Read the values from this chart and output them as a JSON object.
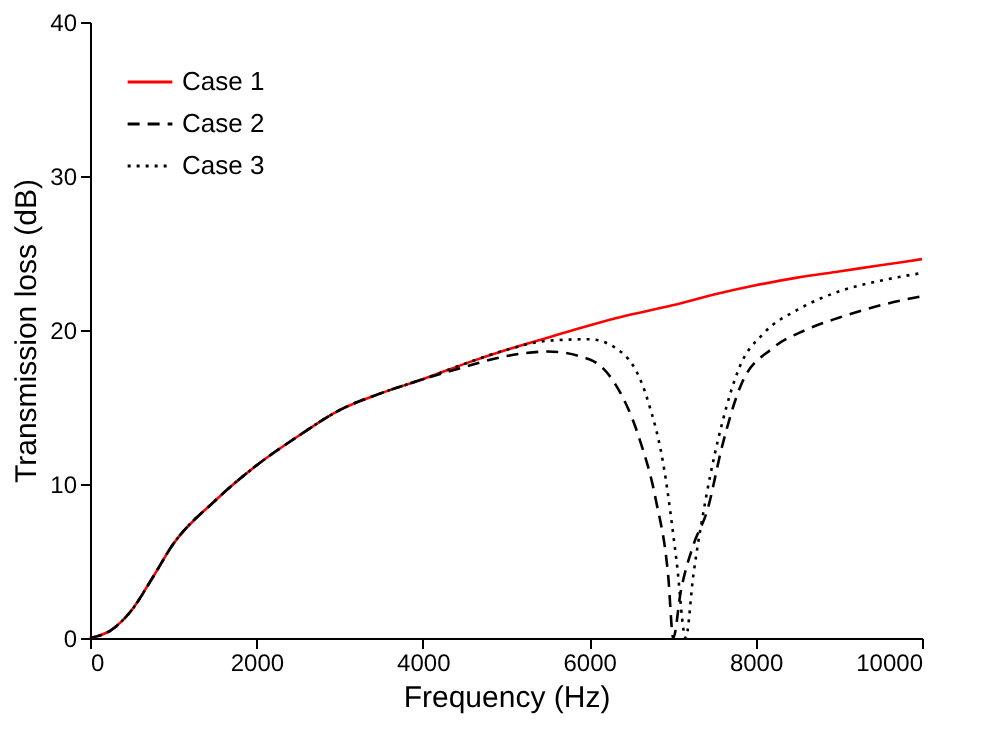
{
  "chart_data": {
    "type": "line",
    "xlabel": "Frequency (Hz)",
    "ylabel": "Transmission loss (dB)",
    "xlim": [
      0,
      10000
    ],
    "ylim": [
      0,
      40
    ],
    "xticks": [
      0,
      2000,
      4000,
      6000,
      8000,
      10000
    ],
    "yticks": [
      0,
      10,
      20,
      30,
      40
    ],
    "grid": false,
    "legend": "top left",
    "marker": "none",
    "series": [
      {
        "name": "Case 1",
        "color": "#ff0000",
        "line_style": "solid",
        "x": [
          0,
          250,
          500,
          750,
          1000,
          1500,
          2000,
          2500,
          3000,
          3500,
          4000,
          4500,
          5000,
          5500,
          6000,
          6500,
          7000,
          7500,
          8000,
          8500,
          9000,
          9500,
          10000
        ],
        "values": [
          0,
          0.5,
          1.8,
          3.9,
          6.1,
          8.9,
          11.2,
          13.1,
          14.8,
          15.9,
          16.8,
          17.8,
          18.7,
          19.5,
          20.3,
          21,
          21.6,
          22.3,
          22.9,
          23.4,
          23.8,
          24.2,
          24.6
        ]
      },
      {
        "name": "Case 2",
        "color": "#000000",
        "line_style": "dashed",
        "x": [
          0,
          250,
          500,
          750,
          1000,
          1500,
          2000,
          2500,
          3000,
          3500,
          4000,
          4500,
          5000,
          5500,
          6000,
          6300,
          6600,
          6800,
          6950,
          7010,
          7100,
          7250,
          7420,
          7600,
          7830,
          8200,
          8600,
          9000,
          9500,
          10000
        ],
        "values": [
          0,
          0.5,
          1.8,
          3.9,
          6.1,
          8.9,
          11.2,
          13.1,
          14.8,
          15.9,
          16.8,
          17.6,
          18.3,
          18.6,
          18.1,
          16.6,
          13,
          9,
          4,
          0,
          3,
          6,
          8.3,
          12.5,
          16.5,
          18.8,
          20,
          20.8,
          21.6,
          22.2
        ]
      },
      {
        "name": "Case 3",
        "color": "#000000",
        "line_style": "dotted",
        "x": [
          0,
          250,
          500,
          750,
          1000,
          1500,
          2000,
          2500,
          3000,
          3500,
          4000,
          4500,
          5000,
          5500,
          6000,
          6400,
          6700,
          6900,
          7050,
          7160,
          7250,
          7400,
          7600,
          7800,
          8100,
          8500,
          9000,
          9500,
          10000
        ],
        "values": [
          0,
          0.5,
          1.8,
          3.9,
          6.1,
          8.9,
          11.2,
          13.1,
          14.8,
          15.9,
          16.8,
          17.8,
          18.7,
          19.3,
          19.4,
          18.5,
          15.5,
          11,
          5,
          0,
          4,
          9,
          14,
          17.5,
          19.8,
          21.3,
          22.5,
          23.2,
          23.7
        ]
      }
    ]
  }
}
